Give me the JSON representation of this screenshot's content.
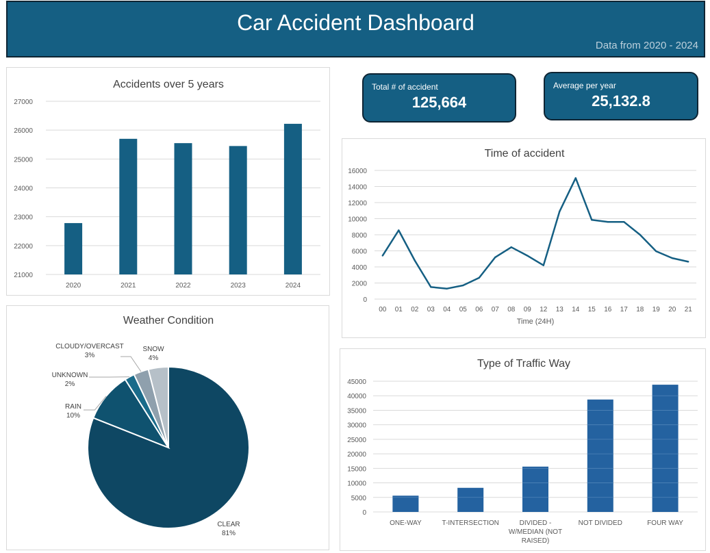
{
  "header": {
    "title": "Car Accident Dashboard",
    "subtitle": "Data from 2020 - 2024"
  },
  "kpis": {
    "total": {
      "label": "Total # of accident",
      "value": "125,664"
    },
    "average": {
      "label": "Average per year",
      "value": "25,132.8"
    }
  },
  "colors": {
    "header_bg": "#155f83",
    "bar_primary": "#155f83",
    "bar_traffic": "#2462a0",
    "line": "#155f83",
    "pie": [
      "#0e4763",
      "#0f526f",
      "#1a6b8a",
      "#8fa0ad",
      "#b6c0c8"
    ]
  },
  "chart_data": [
    {
      "id": "accidents-per-year",
      "type": "bar",
      "title": "Accidents over 5 years",
      "categories": [
        "2020",
        "2021",
        "2022",
        "2023",
        "2024"
      ],
      "values": [
        22780,
        25700,
        25550,
        25450,
        26220
      ],
      "ylim": [
        21000,
        27000
      ],
      "yticks": [
        21000,
        22000,
        23000,
        24000,
        25000,
        26000,
        27000
      ],
      "xlabel": "",
      "ylabel": "",
      "grid": true
    },
    {
      "id": "time-of-accident",
      "type": "line",
      "title": "Time of accident",
      "categories": [
        "00",
        "01",
        "02",
        "03",
        "04",
        "05",
        "06",
        "07",
        "08",
        "09",
        "12",
        "13",
        "14",
        "15",
        "16",
        "17",
        "18",
        "19",
        "20",
        "21"
      ],
      "values": [
        5400,
        8550,
        4800,
        1500,
        1300,
        1700,
        2650,
        5200,
        6450,
        5400,
        4200,
        10900,
        15050,
        9850,
        9600,
        9600,
        8000,
        5950,
        5100,
        4650
      ],
      "ylim": [
        0,
        16000
      ],
      "yticks": [
        0,
        2000,
        4000,
        6000,
        8000,
        10000,
        12000,
        14000,
        16000
      ],
      "xlabel": "Time (24H)",
      "ylabel": "",
      "grid": true
    },
    {
      "id": "weather-condition",
      "type": "pie",
      "title": "Weather Condition",
      "slices": [
        {
          "label": "CLEAR",
          "pct_label": "81%",
          "value": 81
        },
        {
          "label": "RAIN",
          "pct_label": "10%",
          "value": 10
        },
        {
          "label": "UNKNOWN",
          "pct_label": "2%",
          "value": 2
        },
        {
          "label": "CLOUDY/OVERCAST",
          "pct_label": "3%",
          "value": 3
        },
        {
          "label": "SNOW",
          "pct_label": "4%",
          "value": 4
        }
      ]
    },
    {
      "id": "traffic-way",
      "type": "bar",
      "title": "Type of Traffic Way",
      "categories": [
        [
          "ONE-WAY"
        ],
        [
          "T-INTERSECTION"
        ],
        [
          "DIVIDED -",
          "W/MEDIAN (NOT",
          "RAISED)"
        ],
        [
          "NOT DIVIDED"
        ],
        [
          "FOUR WAY"
        ]
      ],
      "values": [
        5600,
        8300,
        15600,
        38700,
        43800
      ],
      "ylim": [
        0,
        45000
      ],
      "yticks": [
        0,
        5000,
        10000,
        15000,
        20000,
        25000,
        30000,
        35000,
        40000,
        45000
      ],
      "xlabel": "",
      "ylabel": "",
      "grid": true
    }
  ]
}
